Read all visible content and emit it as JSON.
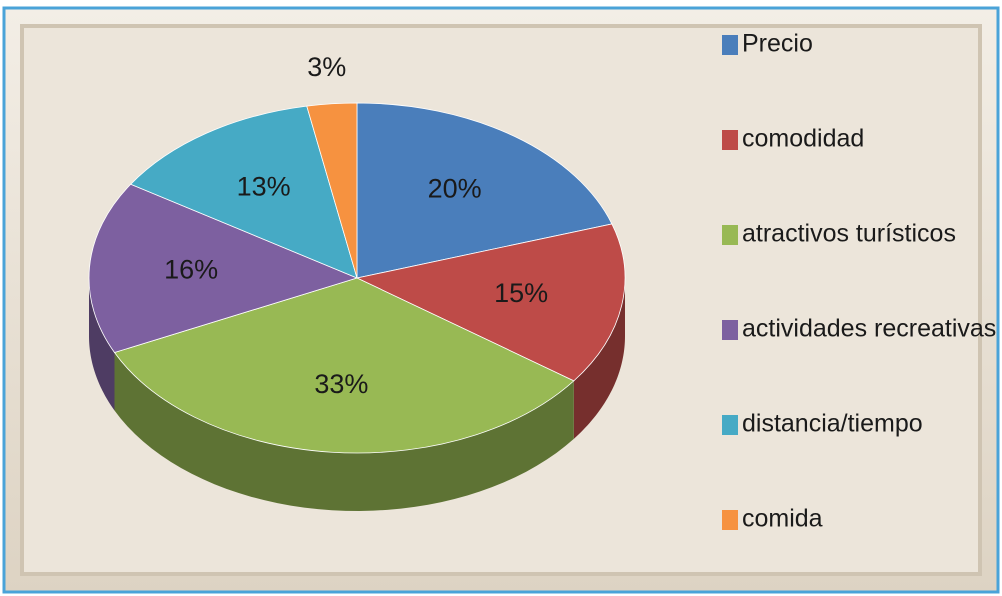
{
  "chart_data": {
    "type": "pie",
    "categories": [
      "Precio",
      "comodidad",
      "atractivos turísticos",
      "actividades recreativas",
      "distancia/tiempo",
      "comida"
    ],
    "values": [
      20,
      15,
      33,
      16,
      13,
      3
    ],
    "value_labels": [
      "20%",
      "15%",
      "33%",
      "16%",
      "13%",
      "3%"
    ],
    "colors": [
      "#4a7ebb",
      "#be4b48",
      "#98b954",
      "#7d60a0",
      "#46aac5",
      "#f69240"
    ],
    "legend": "right",
    "three_d": true
  }
}
